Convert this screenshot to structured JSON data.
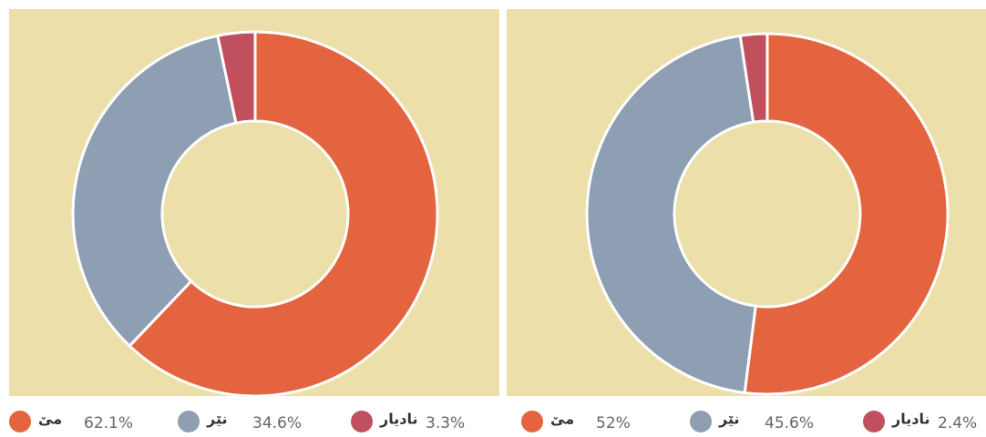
{
  "chart_data": [
    {
      "type": "donut",
      "categories": [
        "مێ",
        "نێر",
        "نادیار"
      ],
      "values": [
        62.1,
        34.6,
        3.3
      ],
      "value_labels": [
        "62.1%",
        "34.6%",
        "3.3%"
      ],
      "colors": [
        "#e4643f",
        "#8e9fb4",
        "#c0505e"
      ]
    },
    {
      "type": "donut",
      "categories": [
        "مێ",
        "نێر",
        "نادیار"
      ],
      "values": [
        52,
        45.6,
        2.4
      ],
      "value_labels": [
        "52%",
        "45.6%",
        "2.4%"
      ],
      "colors": [
        "#e4643f",
        "#8e9fb4",
        "#c0505e"
      ]
    }
  ]
}
